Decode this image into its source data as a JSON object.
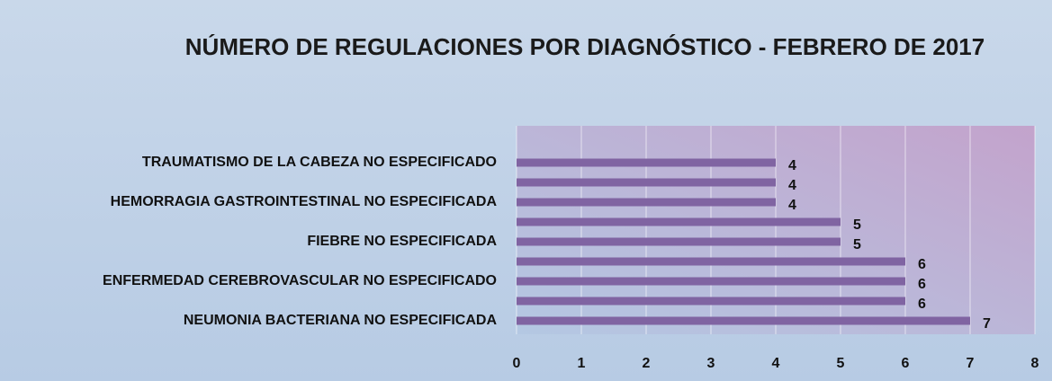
{
  "chart_data": {
    "type": "bar",
    "orientation": "horizontal",
    "title": "NÚMERO DE REGULACIONES POR DIAGNÓSTICO - FEBRERO  DE 2017",
    "categories": [
      "TRAUMATISMO DE LA CABEZA NO ESPECIFICADO",
      null,
      "HEMORRAGIA GASTROINTESTINAL NO ESPECIFICADA",
      null,
      "FIEBRE NO ESPECIFICADA",
      null,
      "ENFERMEDAD CEREBROVASCULAR NO ESPECIFICADO",
      null,
      "NEUMONIA BACTERIANA NO ESPECIFICADA"
    ],
    "values": [
      4,
      4,
      4,
      5,
      5,
      6,
      6,
      6,
      7
    ],
    "color": "#8064a2",
    "xlim": [
      0,
      8
    ],
    "xticks": [
      0,
      1,
      2,
      3,
      4,
      5,
      6,
      7,
      8
    ],
    "grid": true
  }
}
